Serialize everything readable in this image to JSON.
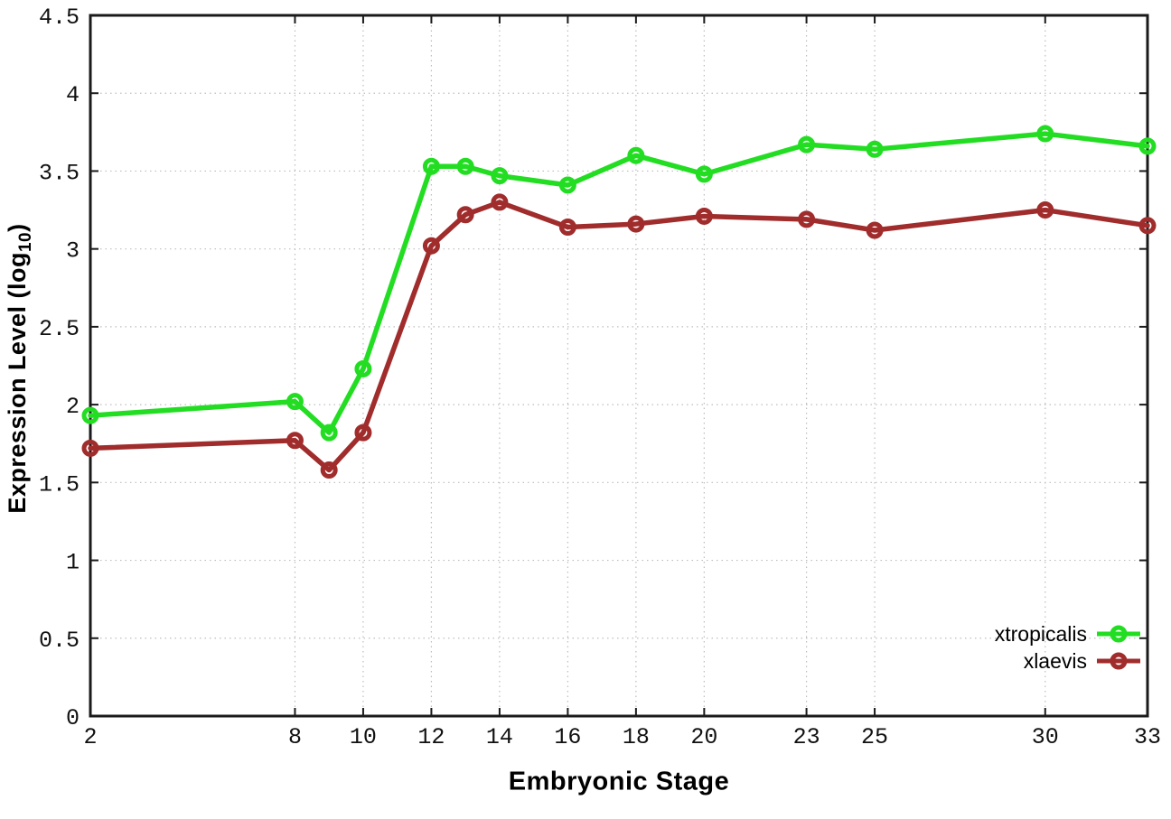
{
  "chart_data": {
    "type": "line",
    "title": "",
    "xlabel": "Embryonic Stage",
    "ylabel": "Expression Level (log10)",
    "ylabel_parts": {
      "main": "Expression Level (log",
      "sub": "10",
      "end": ")"
    },
    "x": [
      2,
      8,
      9,
      10,
      12,
      13,
      14,
      16,
      18,
      20,
      23,
      25,
      30,
      33
    ],
    "xlim": [
      2,
      33
    ],
    "ylim": [
      0,
      4.5
    ],
    "xticks": {
      "values": [
        2,
        8,
        10,
        12,
        14,
        16,
        18,
        20,
        23,
        25,
        30,
        33
      ],
      "labels": [
        "2",
        "8",
        "10",
        "12",
        "14",
        "16",
        "18",
        "20",
        "23",
        "25",
        "30",
        "33"
      ]
    },
    "yticks": {
      "values": [
        0,
        0.5,
        1,
        1.5,
        2,
        2.5,
        3,
        3.5,
        4,
        4.5
      ],
      "labels": [
        "0",
        "0.5",
        "1",
        "1.5",
        "2",
        "2.5",
        "3",
        "3.5",
        "4",
        "4.5"
      ]
    },
    "grid": true,
    "legend_position": "bottom-right",
    "series": [
      {
        "name": "xtropicalis",
        "color": "#22dd22",
        "marker": "open-circle",
        "values": [
          1.93,
          2.02,
          1.82,
          2.23,
          3.53,
          3.53,
          3.47,
          3.41,
          3.6,
          3.48,
          3.67,
          3.64,
          3.74,
          3.66
        ]
      },
      {
        "name": "xlaevis",
        "color": "#a02c2c",
        "marker": "open-circle",
        "values": [
          1.72,
          1.77,
          1.58,
          1.82,
          3.02,
          3.22,
          3.3,
          3.14,
          3.16,
          3.21,
          3.19,
          3.12,
          3.25,
          3.15
        ]
      }
    ],
    "axis_color": "#1a1a1a",
    "grid_color": "#bdbdbd",
    "tick_label_color": "#111111",
    "background": "#ffffff"
  }
}
